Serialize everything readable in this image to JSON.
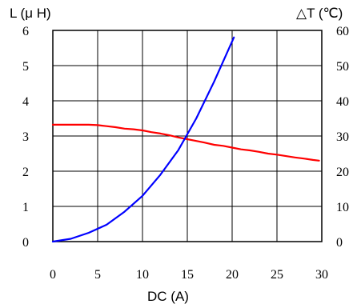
{
  "chart_data": {
    "type": "line",
    "left_axis_title": "L (μ H)",
    "right_axis_title": "△T (℃)",
    "xlabel": "DC (A)",
    "xlim": [
      0,
      30
    ],
    "ylim_left": [
      0,
      6
    ],
    "ylim_right": [
      0,
      60
    ],
    "x_ticks": [
      "0",
      "5",
      "10",
      "15",
      "20",
      "25",
      "30"
    ],
    "y_left_ticks": [
      "0",
      "1",
      "2",
      "3",
      "4",
      "5",
      "6"
    ],
    "y_right_ticks": [
      "0",
      "10",
      "20",
      "30",
      "40",
      "50",
      "60"
    ],
    "grid": true,
    "series": [
      {
        "axis": "left",
        "color": "#ff0000",
        "x": [
          0,
          2,
          4,
          5,
          6,
          7,
          8,
          9,
          10,
          11,
          12,
          13,
          14,
          15,
          16,
          17,
          18,
          19,
          20,
          21,
          22,
          23,
          24,
          25,
          26,
          27,
          28,
          29,
          29.7
        ],
        "y": [
          3.32,
          3.32,
          3.32,
          3.31,
          3.28,
          3.25,
          3.21,
          3.19,
          3.16,
          3.11,
          3.07,
          3.02,
          2.96,
          2.91,
          2.86,
          2.81,
          2.75,
          2.72,
          2.67,
          2.62,
          2.59,
          2.55,
          2.5,
          2.47,
          2.43,
          2.39,
          2.36,
          2.32,
          2.3
        ]
      },
      {
        "axis": "right",
        "color": "#0000ff",
        "x": [
          0,
          2,
          4,
          6,
          8,
          10,
          12,
          14,
          16,
          18,
          20.2
        ],
        "y": [
          0,
          0.8,
          2.5,
          4.8,
          8.5,
          13,
          19,
          26,
          35,
          45.5,
          58
        ]
      }
    ]
  }
}
